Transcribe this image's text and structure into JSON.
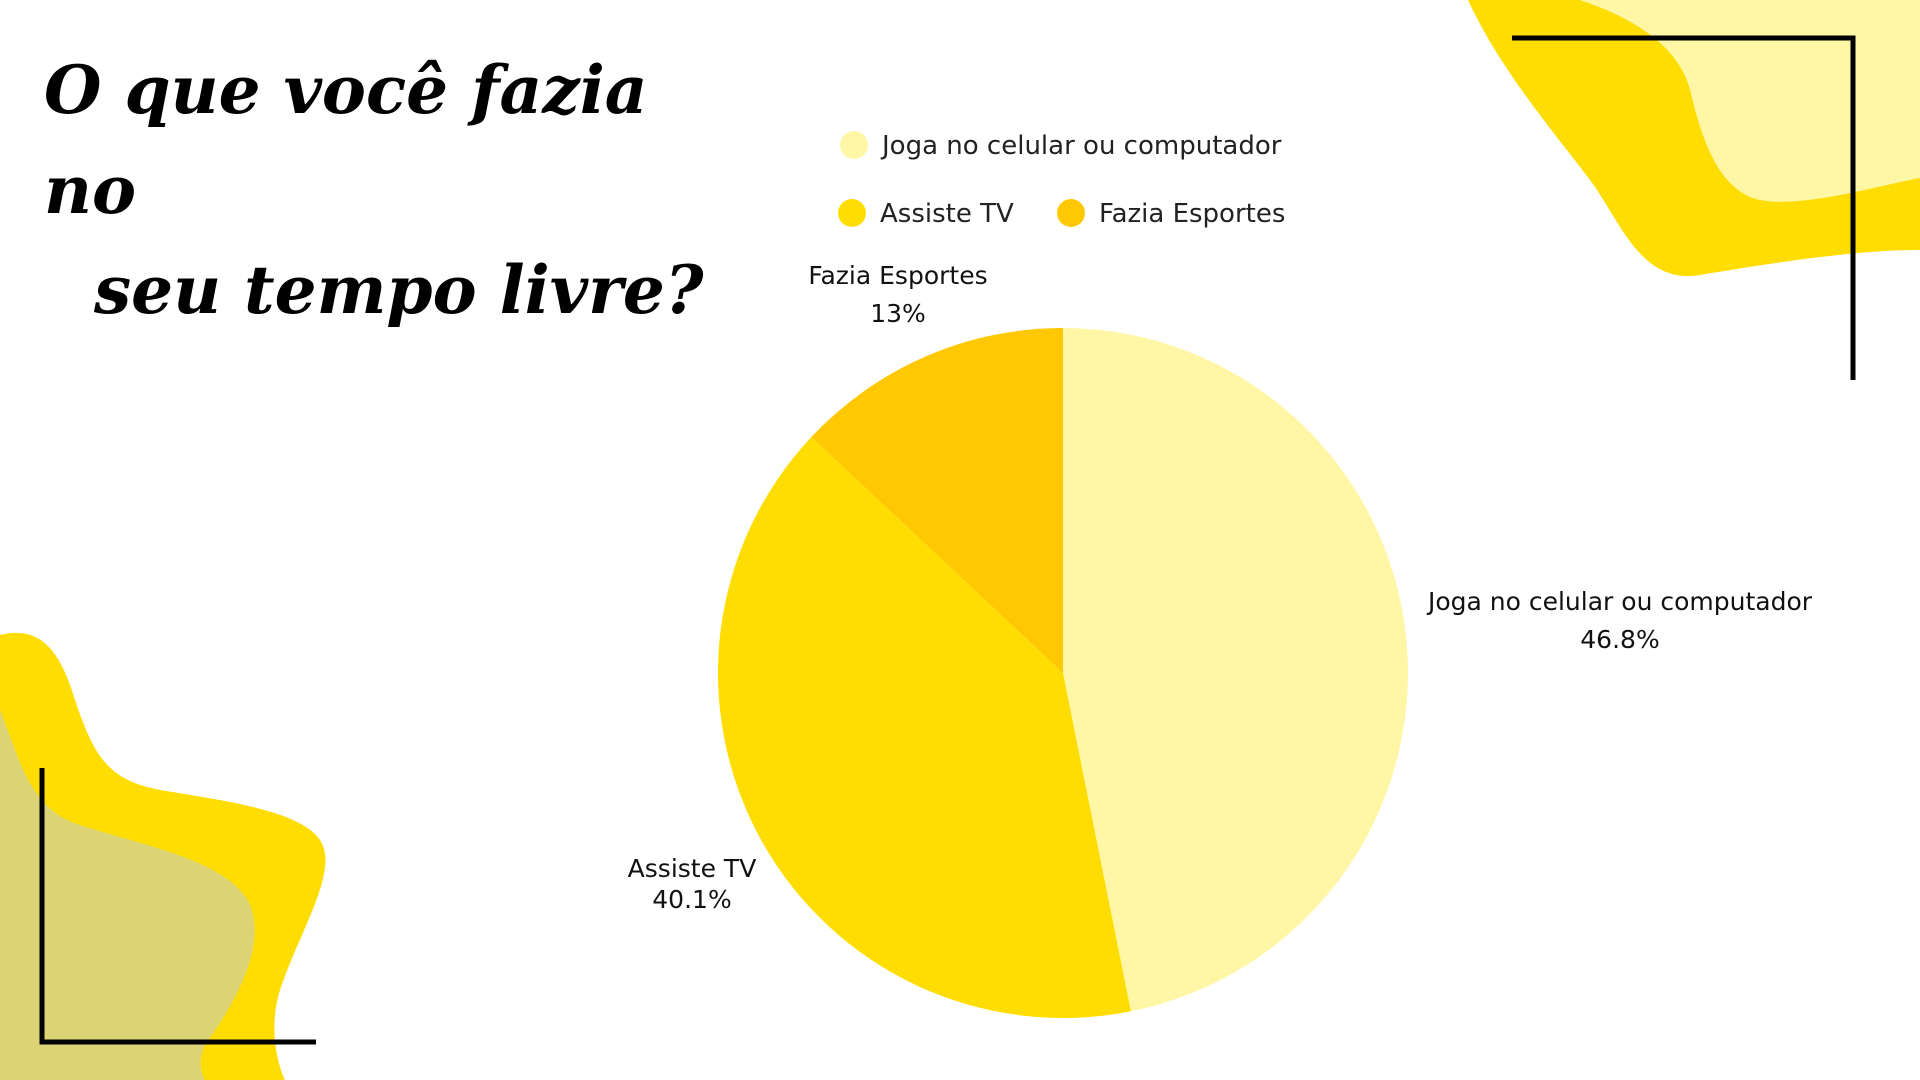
{
  "title": {
    "line1": "O que você fazia no",
    "line2": "seu tempo livre?"
  },
  "colors": {
    "accent": "#FFDD00",
    "light": "#FFF7A6",
    "olive": "#DCD474",
    "frame": "#000000"
  },
  "chart_data": {
    "type": "pie",
    "legend_position": "top",
    "slices": [
      {
        "label": "Joga no celular ou computador",
        "value": 46.8,
        "display": "46.8%",
        "color": "#FFF7A6"
      },
      {
        "label": "Assiste TV",
        "value": 40.1,
        "display": "40.1%",
        "color": "#FFDD00"
      },
      {
        "label": "Fazia Esportes",
        "value": 13.0,
        "display": "13%",
        "color": "#FFC800"
      }
    ]
  }
}
